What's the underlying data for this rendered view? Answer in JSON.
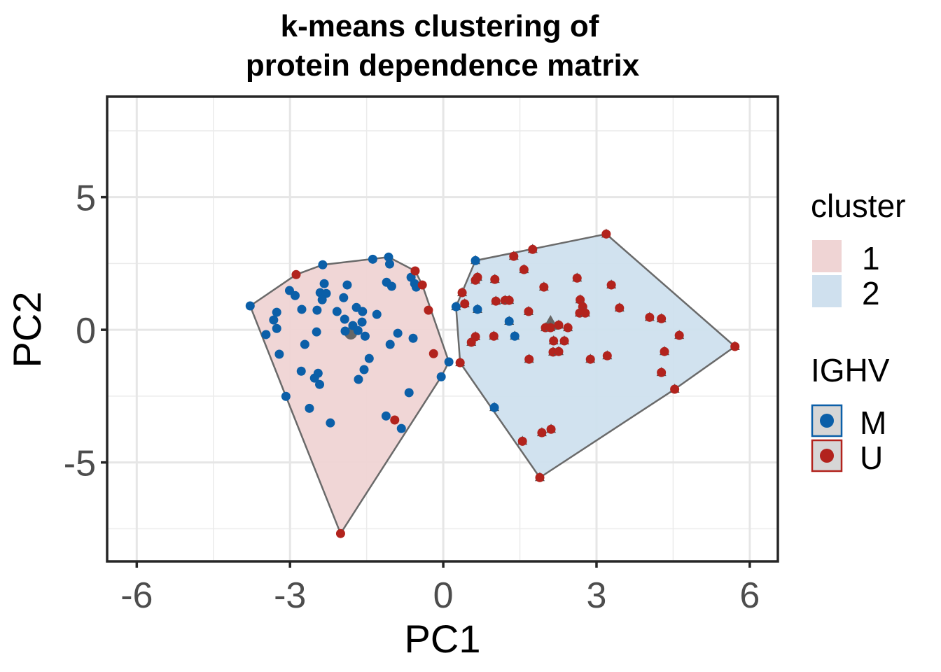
{
  "chart_data": {
    "type": "scatter",
    "title": "k-means clustering of\nprotein dependence matrix",
    "title_lines": [
      "k-means clustering of",
      "protein dependence matrix"
    ],
    "xlabel": "PC1",
    "ylabel": "PC2",
    "xlim": [
      -6.58,
      6.55
    ],
    "ylim": [
      -8.73,
      8.79
    ],
    "x_ticks": [
      -6,
      -3,
      0,
      3,
      6
    ],
    "x_tick_labels": [
      "-6",
      "-3",
      "0",
      "3",
      "6"
    ],
    "y_ticks": [
      -5,
      0,
      5
    ],
    "y_tick_labels": [
      "-5",
      "0",
      "5"
    ],
    "x_minor": [
      -4.5,
      -1.5,
      1.5,
      4.5
    ],
    "y_minor": [
      -7.5,
      -2.5,
      2.5,
      7.5
    ],
    "grid": true,
    "legend_position": "right",
    "colors": {
      "M": "#0b5fa8",
      "U": "#b2231d",
      "cluster_1_fill": "#efd4d4",
      "cluster_2_fill": "#cfe0ee",
      "hull_stroke": "#6a6a6a",
      "centroid": "#666666"
    },
    "legend": {
      "cluster": {
        "title": "cluster",
        "entries": [
          "1",
          "2"
        ]
      },
      "ighv": {
        "title": "IGHV",
        "entries": [
          "M",
          "U"
        ]
      }
    },
    "centroids": [
      {
        "cluster": "1",
        "x": -1.81,
        "y": -0.13
      },
      {
        "cluster": "2",
        "x": 2.1,
        "y": 0.24
      }
    ],
    "series": [
      {
        "name": "cluster 1",
        "cluster": "1",
        "points": [
          {
            "x": -3.78,
            "y": 0.9,
            "ighv": "M"
          },
          {
            "x": -2.36,
            "y": 2.45,
            "ighv": "M"
          },
          {
            "x": -1.38,
            "y": 2.66,
            "ighv": "M"
          },
          {
            "x": -1.07,
            "y": 2.74,
            "ighv": "M"
          },
          {
            "x": -1.05,
            "y": 2.48,
            "ighv": "M"
          },
          {
            "x": -0.63,
            "y": 1.98,
            "ighv": "M"
          },
          {
            "x": -0.56,
            "y": 1.74,
            "ighv": "M"
          },
          {
            "x": -0.53,
            "y": 1.61,
            "ighv": "M"
          },
          {
            "x": -1.11,
            "y": 1.79,
            "ighv": "M"
          },
          {
            "x": -1.01,
            "y": 1.64,
            "ighv": "M"
          },
          {
            "x": -3.01,
            "y": 1.48,
            "ighv": "M"
          },
          {
            "x": -2.9,
            "y": 1.29,
            "ighv": "M"
          },
          {
            "x": -2.33,
            "y": 1.74,
            "ighv": "M"
          },
          {
            "x": -2.41,
            "y": 1.4,
            "ighv": "M"
          },
          {
            "x": -2.29,
            "y": 1.37,
            "ighv": "M"
          },
          {
            "x": -2.37,
            "y": 1.13,
            "ighv": "M"
          },
          {
            "x": -1.88,
            "y": 1.69,
            "ighv": "M"
          },
          {
            "x": -1.95,
            "y": 1.21,
            "ighv": "M"
          },
          {
            "x": -2.08,
            "y": 0.69,
            "ighv": "M"
          },
          {
            "x": -1.7,
            "y": 0.84,
            "ighv": "M"
          },
          {
            "x": -1.58,
            "y": 0.69,
            "ighv": "M"
          },
          {
            "x": -1.3,
            "y": 0.58,
            "ighv": "M"
          },
          {
            "x": -2.77,
            "y": 0.77,
            "ighv": "M"
          },
          {
            "x": -2.47,
            "y": 0.74,
            "ighv": "M"
          },
          {
            "x": -3.26,
            "y": 0.66,
            "ighv": "M"
          },
          {
            "x": -3.32,
            "y": 0.37,
            "ighv": "M"
          },
          {
            "x": -3.26,
            "y": 0.05,
            "ighv": "M"
          },
          {
            "x": -3.47,
            "y": -0.18,
            "ighv": "M"
          },
          {
            "x": -2.48,
            "y": -0.08,
            "ighv": "M"
          },
          {
            "x": -1.93,
            "y": 0.4,
            "ighv": "M"
          },
          {
            "x": -1.59,
            "y": 0.29,
            "ighv": "M"
          },
          {
            "x": -1.77,
            "y": 0.16,
            "ighv": "M"
          },
          {
            "x": -1.92,
            "y": -0.05,
            "ighv": "M"
          },
          {
            "x": -1.67,
            "y": -0.03,
            "ighv": "M"
          },
          {
            "x": -1.53,
            "y": -0.24,
            "ighv": "M"
          },
          {
            "x": -0.89,
            "y": -0.13,
            "ighv": "M"
          },
          {
            "x": -0.59,
            "y": -0.32,
            "ighv": "M"
          },
          {
            "x": -1.04,
            "y": -0.55,
            "ighv": "M"
          },
          {
            "x": -2.71,
            "y": -0.55,
            "ighv": "M"
          },
          {
            "x": -3.21,
            "y": -0.92,
            "ighv": "M"
          },
          {
            "x": -1.45,
            "y": -1.08,
            "ighv": "M"
          },
          {
            "x": -1.55,
            "y": -1.5,
            "ighv": "M"
          },
          {
            "x": -1.66,
            "y": -1.87,
            "ighv": "M"
          },
          {
            "x": -2.78,
            "y": -1.56,
            "ighv": "M"
          },
          {
            "x": -2.45,
            "y": -1.64,
            "ighv": "M"
          },
          {
            "x": -2.52,
            "y": -1.82,
            "ighv": "M"
          },
          {
            "x": -2.42,
            "y": -2.06,
            "ighv": "M"
          },
          {
            "x": 0.11,
            "y": -1.21,
            "ighv": "M"
          },
          {
            "x": -0.04,
            "y": -1.77,
            "ighv": "M"
          },
          {
            "x": -0.67,
            "y": -2.37,
            "ighv": "M"
          },
          {
            "x": -3.08,
            "y": -2.51,
            "ighv": "M"
          },
          {
            "x": -2.62,
            "y": -2.96,
            "ighv": "M"
          },
          {
            "x": -2.21,
            "y": -3.51,
            "ighv": "M"
          },
          {
            "x": -1.12,
            "y": -3.25,
            "ighv": "M"
          },
          {
            "x": -0.82,
            "y": -3.72,
            "ighv": "M"
          },
          {
            "x": -2.88,
            "y": 2.08,
            "ighv": "U"
          },
          {
            "x": -0.55,
            "y": 2.22,
            "ighv": "U"
          },
          {
            "x": -0.41,
            "y": 1.69,
            "ighv": "U"
          },
          {
            "x": -0.29,
            "y": 0.74,
            "ighv": "U"
          },
          {
            "x": -0.19,
            "y": -0.9,
            "ighv": "U"
          },
          {
            "x": -0.95,
            "y": -3.4,
            "ighv": "U"
          },
          {
            "x": -2.01,
            "y": -7.68,
            "ighv": "U"
          }
        ]
      },
      {
        "name": "cluster 2",
        "cluster": "2",
        "points": [
          {
            "x": 0.63,
            "y": 2.61,
            "ighv": "M"
          },
          {
            "x": 0.25,
            "y": 0.87,
            "ighv": "M"
          },
          {
            "x": 0.67,
            "y": 0.77,
            "ighv": "M"
          },
          {
            "x": 1.29,
            "y": 0.32,
            "ighv": "M"
          },
          {
            "x": 1.4,
            "y": -0.24,
            "ighv": "M"
          },
          {
            "x": 1.0,
            "y": -2.93,
            "ighv": "M"
          },
          {
            "x": 3.19,
            "y": 3.61,
            "ighv": "U"
          },
          {
            "x": 1.75,
            "y": 3.03,
            "ighv": "U"
          },
          {
            "x": 1.38,
            "y": 2.77,
            "ighv": "U"
          },
          {
            "x": 1.58,
            "y": 2.27,
            "ighv": "U"
          },
          {
            "x": 0.67,
            "y": 1.98,
            "ighv": "U"
          },
          {
            "x": 0.63,
            "y": 1.87,
            "ighv": "U"
          },
          {
            "x": 1.01,
            "y": 1.9,
            "ighv": "U"
          },
          {
            "x": 2.62,
            "y": 1.95,
            "ighv": "U"
          },
          {
            "x": 3.29,
            "y": 1.69,
            "ighv": "U"
          },
          {
            "x": 1.97,
            "y": 1.61,
            "ighv": "U"
          },
          {
            "x": 0.37,
            "y": 1.4,
            "ighv": "U"
          },
          {
            "x": 0.42,
            "y": 0.98,
            "ighv": "U"
          },
          {
            "x": 1.03,
            "y": 1.08,
            "ighv": "U"
          },
          {
            "x": 1.21,
            "y": 1.11,
            "ighv": "U"
          },
          {
            "x": 1.29,
            "y": 1.11,
            "ighv": "U"
          },
          {
            "x": 1.67,
            "y": 0.69,
            "ighv": "U"
          },
          {
            "x": 2.68,
            "y": 1.13,
            "ighv": "U"
          },
          {
            "x": 2.73,
            "y": 0.87,
            "ighv": "U"
          },
          {
            "x": 2.67,
            "y": 0.63,
            "ighv": "U"
          },
          {
            "x": 2.78,
            "y": 0.63,
            "ighv": "U"
          },
          {
            "x": 3.45,
            "y": 0.82,
            "ighv": "U"
          },
          {
            "x": 2.0,
            "y": 0.08,
            "ighv": "U"
          },
          {
            "x": 2.1,
            "y": 0.08,
            "ighv": "U"
          },
          {
            "x": 2.26,
            "y": 0.18,
            "ighv": "U"
          },
          {
            "x": 2.44,
            "y": 0.08,
            "ighv": "U"
          },
          {
            "x": 2.16,
            "y": -0.42,
            "ighv": "U"
          },
          {
            "x": 2.37,
            "y": -0.42,
            "ighv": "U"
          },
          {
            "x": 2.15,
            "y": -0.84,
            "ighv": "U"
          },
          {
            "x": 2.26,
            "y": -0.82,
            "ighv": "U"
          },
          {
            "x": 2.88,
            "y": -1.11,
            "ighv": "U"
          },
          {
            "x": 3.21,
            "y": -0.98,
            "ighv": "U"
          },
          {
            "x": 0.63,
            "y": -0.26,
            "ighv": "U"
          },
          {
            "x": 0.55,
            "y": -0.47,
            "ighv": "U"
          },
          {
            "x": 0.99,
            "y": -0.24,
            "ighv": "U"
          },
          {
            "x": 1.68,
            "y": -1.11,
            "ighv": "U"
          },
          {
            "x": 0.33,
            "y": -1.24,
            "ighv": "U"
          },
          {
            "x": 1.55,
            "y": -4.2,
            "ighv": "U"
          },
          {
            "x": 1.93,
            "y": -3.88,
            "ighv": "U"
          },
          {
            "x": 2.11,
            "y": -3.75,
            "ighv": "U"
          },
          {
            "x": 1.89,
            "y": -5.57,
            "ighv": "U"
          },
          {
            "x": 4.04,
            "y": 0.47,
            "ighv": "U"
          },
          {
            "x": 4.27,
            "y": 0.42,
            "ighv": "U"
          },
          {
            "x": 4.62,
            "y": -0.21,
            "ighv": "U"
          },
          {
            "x": 4.33,
            "y": -0.82,
            "ighv": "U"
          },
          {
            "x": 4.27,
            "y": -1.61,
            "ighv": "U"
          },
          {
            "x": 4.53,
            "y": -2.24,
            "ighv": "U"
          },
          {
            "x": 5.71,
            "y": -0.63,
            "ighv": "U"
          }
        ]
      }
    ]
  }
}
